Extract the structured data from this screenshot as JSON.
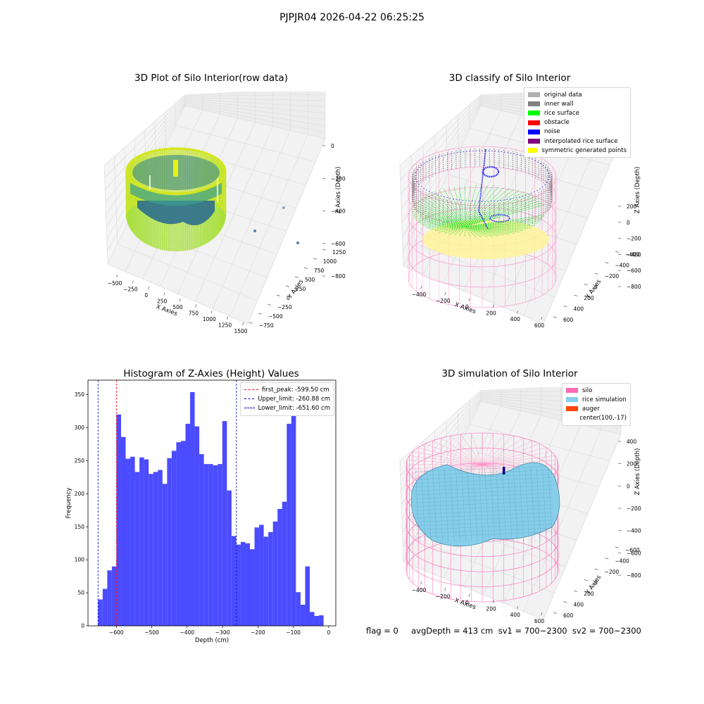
{
  "suptitle": "PJPJR04 2026-04-22 06:25:25",
  "colors": {
    "hist_bar": "#4b4bff",
    "red_line": "#ff0000",
    "blue_line": "#0000cc",
    "silo": "#ff69b4",
    "rice": "#87ceeb",
    "auger": "#ff4500",
    "inner_wall": "#808080",
    "rice_surface": "#00ff00",
    "noise": "#0000ff"
  },
  "panels": {
    "raw": {
      "title": "3D Plot of Silo Interior(row data)",
      "x_label": "X Axies",
      "y_label": "Y Axies",
      "z_label": "Z Axies (Depth)",
      "x_ticks": [
        "−500",
        "−250",
        "0",
        "250",
        "500",
        "750",
        "1000",
        "1250",
        "1500"
      ],
      "y_ticks": [
        "−750",
        "−500",
        "−250",
        "0",
        "250",
        "500",
        "750",
        "1000",
        "1250"
      ],
      "z_ticks": [
        "0",
        "−200",
        "−400",
        "−600",
        "−800"
      ]
    },
    "classify": {
      "title": "3D classify of Silo Interior",
      "x_label": "X Axies",
      "y_label": "Y Axies",
      "z_label": "Z Axies (Depth)",
      "x_ticks": [
        "−400",
        "−200",
        "0",
        "200",
        "400",
        "600"
      ],
      "y_ticks": [
        "−600",
        "−400",
        "−200",
        "0",
        "200",
        "400",
        "600"
      ],
      "z_ticks": [
        "200",
        "0",
        "−200",
        "−400",
        "−600",
        "−800"
      ],
      "z_top_tick": "0",
      "legend": [
        {
          "label": "original data",
          "color": "#b0b0b0"
        },
        {
          "label": "inner wall",
          "color": "#808080"
        },
        {
          "label": "rice surface",
          "color": "#00ff00"
        },
        {
          "label": "obstacle",
          "color": "#ff0000"
        },
        {
          "label": "noise",
          "color": "#0000ff"
        },
        {
          "label": "interpolated rice surface",
          "color": "#800080"
        },
        {
          "label": "symmetric generated points",
          "color": "#ffff00"
        }
      ]
    },
    "simulation": {
      "title": "3D simulation of Silo Interior",
      "x_label": "X Axies",
      "y_label": "Y Axies",
      "z_label": "Z Axies (Depth)",
      "x_ticks": [
        "−400",
        "−200",
        "0",
        "200",
        "400",
        "600"
      ],
      "y_ticks": [
        "−600",
        "−400",
        "−200",
        "0",
        "200",
        "400",
        "600"
      ],
      "z_ticks": [
        "400",
        "200",
        "0",
        "−200",
        "−400",
        "−600",
        "−800"
      ],
      "legend": [
        {
          "label": "silo",
          "color": "#ff69b4"
        },
        {
          "label": "rice simulation",
          "color": "#87ceeb"
        },
        {
          "label": "auger",
          "color": "#ff4500"
        },
        {
          "label": "center(100,-17)",
          "color": ""
        }
      ]
    }
  },
  "chart_data": [
    {
      "type": "bar",
      "title": "Histogram of Z-Axies (Height) Values",
      "xlabel": "Depth (cm)",
      "ylabel": "Frequency",
      "xlim": [
        -680,
        20
      ],
      "ylim": [
        0,
        372
      ],
      "x_ticks": [
        "−600",
        "−500",
        "−400",
        "−300",
        "−200",
        "−100",
        "0"
      ],
      "x_tick_values": [
        -600,
        -500,
        -400,
        -300,
        -200,
        -100,
        0
      ],
      "y_ticks": [
        0,
        50,
        100,
        150,
        200,
        250,
        300,
        350
      ],
      "bin_start": -651.6,
      "bin_width": 13.0,
      "values": [
        40,
        56,
        84,
        90,
        320,
        286,
        253,
        256,
        233,
        255,
        252,
        230,
        233,
        236,
        215,
        254,
        265,
        278,
        280,
        306,
        354,
        302,
        260,
        245,
        245,
        243,
        245,
        310,
        205,
        136,
        123,
        127,
        125,
        116,
        149,
        153,
        135,
        142,
        158,
        177,
        188,
        306,
        330,
        51,
        32,
        90,
        21,
        15,
        16
      ],
      "lines": [
        {
          "label": "first_peak: -599.50 cm",
          "x": -599.5,
          "color": "#ff0000"
        },
        {
          "label": "Upper_limit: -260.88 cm",
          "x": -260.88,
          "color": "#0000cc"
        },
        {
          "label": "Lower_limit: -651.60 cm",
          "x": -651.6,
          "color": "#0000cc"
        }
      ],
      "legend_position": "upper right"
    }
  ],
  "footer": "flag = 0     avgDepth = 413 cm  sv1 = 700~2300  sv2 = 700~2300"
}
